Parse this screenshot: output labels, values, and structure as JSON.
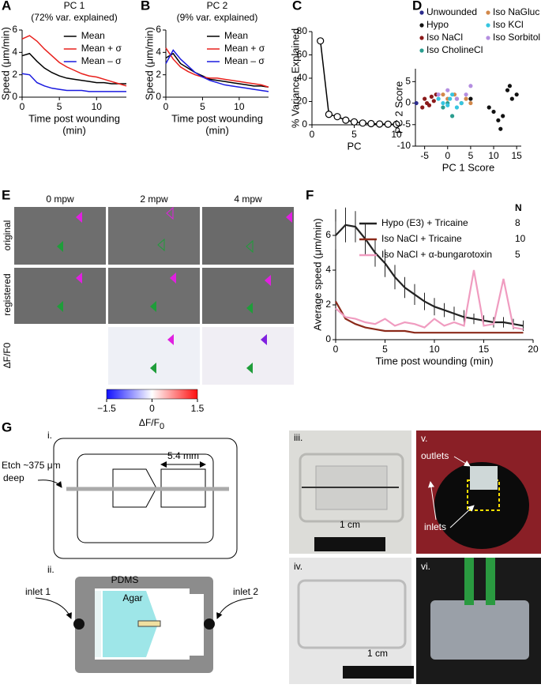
{
  "chart_data": [
    {
      "type": "line",
      "panel": "A",
      "title": "PC 1",
      "subtitle": "(72% var. explained)",
      "ylabel": "Speed (μm/min)",
      "xlabel": [
        "Time post wounding",
        "(min)"
      ],
      "x": [
        0,
        1,
        2,
        3,
        4,
        5,
        6,
        7,
        8,
        9,
        10,
        11,
        12,
        13,
        14
      ],
      "xlim": [
        0,
        14
      ],
      "xticks": [
        0,
        5,
        10
      ],
      "ylim": [
        0,
        6
      ],
      "yticks": [
        0,
        2,
        4,
        6
      ],
      "legend": "upper right",
      "series": [
        {
          "name": "Mean",
          "color": "#000000",
          "values": [
            3.7,
            3.9,
            3.2,
            2.6,
            2.2,
            1.9,
            1.7,
            1.6,
            1.5,
            1.4,
            1.3,
            1.3,
            1.2,
            1.2,
            1.2
          ]
        },
        {
          "name": "Mean + σ",
          "color": "#e8201c",
          "values": [
            5.2,
            5.5,
            5.0,
            4.3,
            3.7,
            3.1,
            2.7,
            2.4,
            2.1,
            1.9,
            1.8,
            1.6,
            1.4,
            1.2,
            1.0
          ]
        },
        {
          "name": "Mean – σ",
          "color": "#1a1adf",
          "values": [
            2.1,
            2.0,
            1.3,
            1.0,
            0.8,
            0.7,
            0.6,
            0.6,
            0.6,
            0.5,
            0.5,
            0.5,
            0.5,
            0.5,
            0.5
          ]
        }
      ]
    },
    {
      "type": "line",
      "panel": "B",
      "title": "PC 2",
      "subtitle": "(9% var. explained)",
      "ylabel": "Speed (μm/min)",
      "xlabel": [
        "Time post wounding",
        "(min)"
      ],
      "x": [
        0,
        1,
        2,
        3,
        4,
        5,
        6,
        7,
        8,
        9,
        10,
        11,
        12,
        13,
        14
      ],
      "xlim": [
        0,
        14
      ],
      "xticks": [
        0,
        5,
        10
      ],
      "ylim": [
        0,
        6
      ],
      "yticks": [
        0,
        2,
        4,
        6
      ],
      "legend": "upper right",
      "series": [
        {
          "name": "Mean",
          "color": "#000000",
          "values": [
            3.5,
            3.9,
            3.0,
            2.6,
            2.2,
            1.9,
            1.6,
            1.5,
            1.4,
            1.3,
            1.2,
            1.1,
            1.0,
            1.0,
            0.9
          ]
        },
        {
          "name": "Mean + σ",
          "color": "#e8201c",
          "values": [
            4.4,
            3.4,
            2.7,
            2.3,
            2.0,
            1.8,
            1.7,
            1.7,
            1.6,
            1.5,
            1.4,
            1.3,
            1.2,
            1.1,
            0.9
          ]
        },
        {
          "name": "Mean – σ",
          "color": "#1a1adf",
          "values": [
            3.0,
            4.2,
            3.4,
            2.8,
            2.2,
            1.8,
            1.5,
            1.3,
            1.1,
            1.0,
            0.9,
            0.8,
            0.7,
            0.6,
            0.5
          ]
        }
      ]
    },
    {
      "type": "line",
      "panel": "C",
      "ylabel": "% Variance Explained",
      "xlabel": [
        "PC"
      ],
      "markers": true,
      "x": [
        1,
        2,
        3,
        4,
        5,
        6,
        7,
        8,
        9,
        10
      ],
      "xlim": [
        0,
        10
      ],
      "xticks": [
        0,
        5,
        10
      ],
      "ylim": [
        0,
        80
      ],
      "yticks": [
        0,
        20,
        40,
        60,
        80
      ],
      "series": [
        {
          "color": "#000000",
          "values": [
            72,
            9,
            7,
            4,
            2.5,
            1.5,
            1,
            0.7,
            0.5,
            0.4
          ]
        }
      ]
    },
    {
      "type": "scatter",
      "panel": "D",
      "ylabel": "PC 2 Score",
      "xlabel": [
        "PC 1 Score"
      ],
      "legend": "above",
      "xlim": [
        -7,
        16
      ],
      "xticks": [
        -5,
        0,
        5,
        10,
        15
      ],
      "ylim": [
        -10,
        8
      ],
      "yticks": [
        -10,
        -5,
        0,
        5
      ],
      "series": [
        {
          "name": "Unwounded",
          "color": "#2b2b8c",
          "x": [
            -6.8
          ],
          "y": [
            0
          ]
        },
        {
          "name": "Hypo",
          "color": "#111111",
          "x": [
            5,
            9,
            10,
            11,
            11.5,
            12,
            13,
            13.5,
            14,
            15
          ],
          "y": [
            1,
            -1,
            -2,
            -4,
            -6,
            -3,
            3,
            4,
            1,
            2
          ]
        },
        {
          "name": "Iso NaCl",
          "color": "#8b1a1a",
          "x": [
            -5.5,
            -5,
            -4.5,
            -4,
            -3.5,
            -3,
            -2.5
          ],
          "y": [
            -1,
            1,
            0,
            -0.5,
            1.5,
            0.5,
            2
          ]
        },
        {
          "name": "Iso CholineCl",
          "color": "#2a9d8f",
          "x": [
            -1,
            0,
            1,
            2,
            3
          ],
          "y": [
            -1,
            0,
            -3,
            1,
            0
          ]
        },
        {
          "name": "Iso NaGluc",
          "color": "#d2884a",
          "x": [
            -1,
            0,
            1.5,
            3,
            4,
            5
          ],
          "y": [
            2,
            1,
            2,
            0,
            1,
            0
          ]
        },
        {
          "name": "Iso KCl",
          "color": "#36c5e0",
          "x": [
            -2,
            -1,
            0,
            0.5,
            1,
            2,
            3
          ],
          "y": [
            1,
            0,
            -0.5,
            1,
            2,
            -1,
            0
          ]
        },
        {
          "name": "Iso Sorbitol",
          "color": "#b48ee0",
          "x": [
            -2,
            0,
            2,
            4,
            5
          ],
          "y": [
            2,
            3,
            1,
            2,
            4
          ]
        }
      ]
    },
    {
      "type": "line",
      "panel": "F",
      "ylabel": "Average speed (μm/min)",
      "xlabel": [
        "Time post wounding (min)"
      ],
      "legend": "upper right",
      "n_header": "N",
      "x": [
        0,
        1,
        2,
        3,
        4,
        5,
        6,
        7,
        8,
        9,
        10,
        11,
        12,
        13,
        14,
        15,
        16,
        17,
        18,
        19
      ],
      "xlim": [
        0,
        20
      ],
      "xticks": [
        0,
        5,
        10,
        15,
        20
      ],
      "ylim": [
        0,
        7.5
      ],
      "yticks": [
        0,
        2,
        4,
        6
      ],
      "series": [
        {
          "name": "Hypo (E3) + Tricaine",
          "n": 8,
          "color": "#222222",
          "values": [
            6.0,
            6.6,
            6.5,
            5.8,
            5.0,
            4.4,
            3.6,
            3.0,
            2.6,
            2.2,
            1.9,
            1.7,
            1.5,
            1.3,
            1.2,
            1.1,
            1.0,
            1.0,
            0.9,
            0.8
          ],
          "errors": [
            0.8,
            1.0,
            0.9,
            0.9,
            0.8,
            0.8,
            0.7,
            0.6,
            0.6,
            0.5,
            0.5,
            0.4,
            0.4,
            0.4,
            0.3,
            0.3,
            0.3,
            0.3,
            0.3,
            0.3
          ]
        },
        {
          "name": "Iso NaCl + Tricaine",
          "n": 10,
          "color": "#8b2a1a",
          "values": [
            2.2,
            1.2,
            0.9,
            0.7,
            0.6,
            0.5,
            0.5,
            0.5,
            0.4,
            0.4,
            0.4,
            0.4,
            0.4,
            0.4,
            0.4,
            0.4,
            0.4,
            0.4,
            0.4,
            0.4
          ]
        },
        {
          "name": "Iso NaCl + α-bungarotoxin",
          "n": 5,
          "color": "#f09cc0",
          "values": [
            1.8,
            1.3,
            1.2,
            1.0,
            0.9,
            1.2,
            0.8,
            1.0,
            0.9,
            0.7,
            1.2,
            0.8,
            1.0,
            0.8,
            4.0,
            0.8,
            0.9,
            3.5,
            0.7,
            0.6
          ]
        }
      ]
    }
  ],
  "panel_e": {
    "panel": "E",
    "columns": [
      "0 mpw",
      "2 mpw",
      "4 mpw"
    ],
    "rows": [
      "original",
      "registered",
      "ΔF/F0"
    ],
    "colorbar": {
      "ticks": [
        {
          "value": -1.5,
          "label": "−1.5"
        },
        0,
        1.5
      ],
      "label": {
        "main": "ΔF/F",
        "sub": "0"
      }
    }
  },
  "panel_g": {
    "panel": "G",
    "i": {
      "label": "i.",
      "etch": [
        "Etch ~375 μm",
        "deep"
      ],
      "width": "5.4 mm"
    },
    "ii": {
      "label": "ii.",
      "inlet1": "inlet 1",
      "inlet2": "inlet 2",
      "pdms": "PDMS",
      "agar": "Agar"
    },
    "iii": {
      "label": "iii.",
      "scale": "1 cm"
    },
    "iv": {
      "label": "iv.",
      "scale": "1 cm"
    },
    "v": {
      "label": "v.",
      "outlets": "outlets",
      "inlets": "inlets"
    },
    "vi": {
      "label": "vi."
    }
  }
}
